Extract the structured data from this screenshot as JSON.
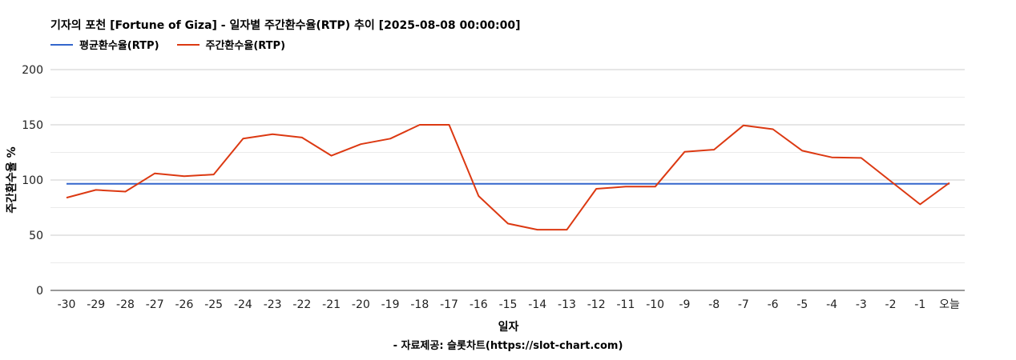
{
  "chart_data": {
    "type": "line",
    "title": "기자의 포천 [Fortune of Giza] - 일자별 주간환수율(RTP) 추이 [2025-08-08 00:00:00]",
    "xlabel": "일자",
    "ylabel": "주간환수율 %",
    "ylim": [
      0,
      200
    ],
    "yticks": [
      0,
      50,
      100,
      150,
      200
    ],
    "grid": true,
    "legend_position": "top-left",
    "categories": [
      "-30",
      "-29",
      "-28",
      "-27",
      "-26",
      "-25",
      "-24",
      "-23",
      "-22",
      "-21",
      "-20",
      "-19",
      "-18",
      "-17",
      "-16",
      "-15",
      "-14",
      "-13",
      "-12",
      "-11",
      "-10",
      "-9",
      "-8",
      "-7",
      "-6",
      "-5",
      "-4",
      "-3",
      "-2",
      "-1",
      "오늘"
    ],
    "series": [
      {
        "name": "평균환수율(RTP)",
        "color": "#3366cc",
        "values": [
          96.5,
          96.5,
          96.5,
          96.5,
          96.5,
          96.5,
          96.5,
          96.5,
          96.5,
          96.5,
          96.5,
          96.5,
          96.5,
          96.5,
          96.5,
          96.5,
          96.5,
          96.5,
          96.5,
          96.5,
          96.5,
          96.5,
          96.5,
          96.5,
          96.5,
          96.5,
          96.5,
          96.5,
          96.5,
          96.5,
          96.5
        ]
      },
      {
        "name": "주간환수율(RTP)",
        "color": "#dc3912",
        "values": [
          84,
          91,
          89.5,
          106,
          103.5,
          105,
          137.5,
          141.5,
          138.5,
          122,
          132.5,
          137.5,
          150,
          150,
          85.5,
          60.5,
          55,
          55,
          92,
          94,
          94,
          125.5,
          127.5,
          149.5,
          146,
          126.5,
          120.5,
          120,
          99,
          78,
          97.5
        ]
      }
    ],
    "source": "- 자료제공: 슬롯차트(https://slot-chart.com)"
  }
}
